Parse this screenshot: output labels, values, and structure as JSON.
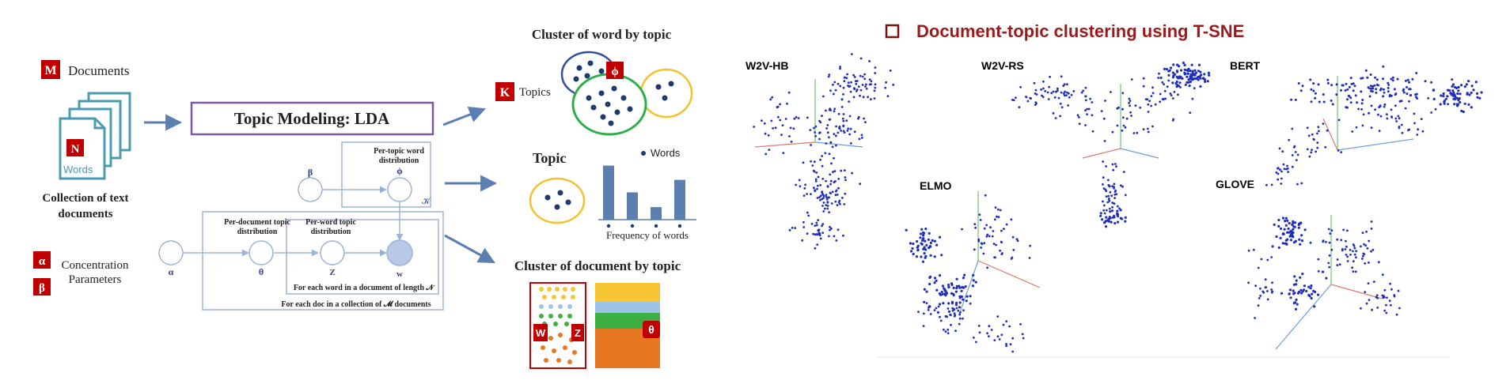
{
  "lda": {
    "documents_badge": "M",
    "documents_label": "Documents",
    "words_badge": "N",
    "words_label": "Words",
    "collection_label_1": "Collection of text",
    "collection_label_2": "documents",
    "topic_modeling_title": "Topic Modeling: LDA",
    "beta": "β",
    "phi": "ϕ",
    "alpha": "α",
    "theta": "θ",
    "z": "Z",
    "w": "w",
    "per_topic_1": "Per-topic word",
    "per_topic_2": "distribution",
    "per_doc_1": "Per-document topic",
    "per_doc_2": "distribution",
    "per_word_1": "Per-word topic",
    "per_word_2": "distribution",
    "plate_k": "𝒦",
    "each_word": "For each word in a document of length 𝒩",
    "each_doc": "For each doc in a collection of 𝓜 documents",
    "alpha_badge": "α",
    "beta_badge": "β",
    "concentration_1": "Concentration",
    "concentration_2": "Parameters",
    "cluster_word_title": "Cluster of word by topic",
    "k_badge": "K",
    "topics_label": "Topics",
    "phi_badge": "ϕ",
    "topic_label": "Topic",
    "words_legend": "Words",
    "frequency_label": "Frequency  of words",
    "cluster_doc_title": "Cluster of document by topic",
    "w_badge": "W",
    "z_badge": "Z",
    "theta_badge": "θ"
  },
  "freq_bars": [
    0.95,
    0.48,
    0.22,
    0.7
  ],
  "tsne": {
    "title": "Document-topic clustering using T-SNE",
    "plots": [
      "W2V-HB",
      "W2V-RS",
      "BERT",
      "ELMO",
      "GLOVE"
    ]
  },
  "colors": {
    "badge_red": "#c00000",
    "title_red": "#9e1a1a",
    "teal": "#4a9bb0",
    "purple": "#7a5aa6",
    "arrow_blue": "#5b7fb0",
    "dot_blue": "#1f2fb8",
    "navy": "#1f3a6e",
    "bar_blue": "#5b7fae",
    "node_fill": "#b9c8e6",
    "circle_blue": "#2f4fa0",
    "circle_green": "#2eae4a",
    "circle_yellow": "#f2c230",
    "orange": "#e87722",
    "light_blue": "#9dc3e6",
    "green": "#3cb043",
    "yellow": "#f5c533"
  }
}
